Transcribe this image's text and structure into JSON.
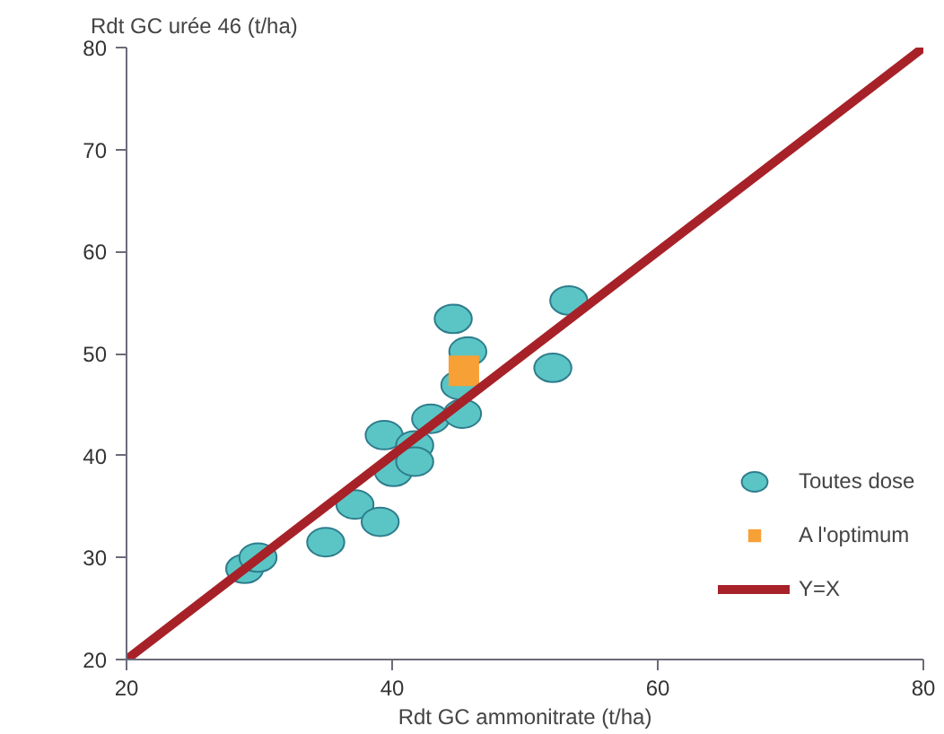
{
  "chart_data": {
    "type": "scatter",
    "xlabel": "Rdt GC ammonitrate (t/ha)",
    "ylabel": "Rdt GC urée 46 (t/ha)",
    "xlim": [
      20,
      80
    ],
    "ylim": [
      20,
      80
    ],
    "xticks": [
      20,
      40,
      60,
      80
    ],
    "yticks": [
      20,
      30,
      40,
      50,
      60,
      70,
      80
    ],
    "grid": false,
    "legend": "right",
    "series": [
      {
        "name": "Toutes dose",
        "color": "#5bc5c6",
        "marker": "circle",
        "x": [
          28.9,
          29.9,
          35.0,
          37.2,
          39.1,
          39.4,
          40.1,
          41.7,
          41.7,
          42.9,
          44.6,
          45.1,
          45.3,
          45.7,
          52.1,
          53.3
        ],
        "values": [
          28.9,
          30.0,
          31.5,
          35.2,
          33.5,
          42.0,
          38.4,
          41.0,
          39.4,
          43.6,
          53.4,
          46.9,
          44.1,
          50.2,
          48.6,
          55.2
        ]
      },
      {
        "name": "A l'optimum",
        "color": "#f7a035",
        "marker": "square",
        "x": [
          45.4
        ],
        "values": [
          48.3
        ]
      },
      {
        "name": "Y=X",
        "type": "line",
        "color": "#a72228",
        "line_style": "solid",
        "x": [
          20,
          80
        ],
        "values": [
          20,
          80
        ]
      }
    ]
  }
}
